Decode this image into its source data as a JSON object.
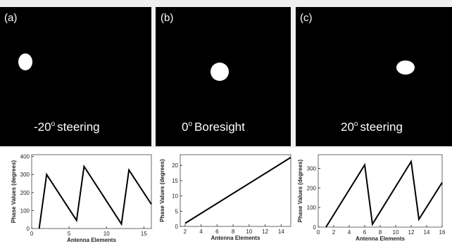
{
  "panels": [
    {
      "tag": "(a)",
      "label_main": "-20",
      "label_sup": "o",
      "label_rest": "steering"
    },
    {
      "tag": "(b)",
      "label_main": "0",
      "label_sup": "o",
      "label_rest": "Boresight"
    },
    {
      "tag": "(c)",
      "label_main": "20",
      "label_sup": "o",
      "label_rest": "steering"
    }
  ],
  "chart_data": [
    {
      "type": "line",
      "xlabel": "Antenna Elements",
      "ylabel": "Phase Values (degrees)",
      "x": [
        1,
        2,
        6,
        7,
        12,
        13,
        16
      ],
      "series": [
        {
          "color": "#000000",
          "values": [
            0,
            300,
            45,
            345,
            25,
            325,
            135
          ]
        }
      ],
      "xlim": [
        0,
        16
      ],
      "xticks": [
        0,
        5,
        10,
        15
      ],
      "ylim": [
        0,
        410
      ],
      "yticks": [
        0,
        100,
        200,
        300,
        400
      ]
    },
    {
      "type": "line",
      "xlabel": "Antenna Elements",
      "ylabel": "Phase Values (degrees)",
      "x": [
        2,
        15.2
      ],
      "series": [
        {
          "color": "#000000",
          "values": [
            1,
            22.6
          ]
        }
      ],
      "xlim": [
        1.4,
        15.2
      ],
      "xticks": [
        2,
        4,
        6,
        8,
        10,
        12,
        14
      ],
      "ylim": [
        0,
        23.5
      ],
      "yticks": [
        0,
        5,
        10,
        15,
        20
      ]
    },
    {
      "type": "line",
      "xlabel": "Antenna Elements",
      "ylabel": "Phase Values (degrees)",
      "x": [
        1,
        6,
        7,
        12,
        13,
        16
      ],
      "series": [
        {
          "color": "#000000",
          "values": [
            0,
            318,
            15,
            335,
            40,
            228
          ]
        }
      ],
      "xlim": [
        0,
        16
      ],
      "xticks": [
        0,
        2,
        4,
        6,
        8,
        10,
        12,
        14,
        16
      ],
      "ylim": [
        0,
        370
      ],
      "yticks": [
        0,
        100,
        200,
        300
      ]
    }
  ]
}
